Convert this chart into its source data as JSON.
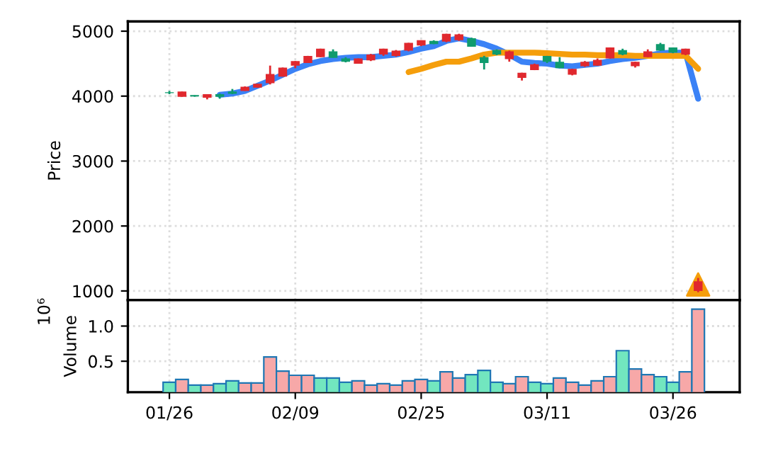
{
  "chart_data": [
    {
      "type": "candlestick",
      "ylabel": "Price",
      "tick_labels": "y",
      "grid": true,
      "categories": [
        null,
        null,
        null,
        null,
        null,
        null,
        null,
        null,
        null,
        null,
        null,
        null,
        null,
        null,
        null,
        null,
        null,
        null,
        null,
        null,
        null,
        null,
        null,
        null,
        null,
        null,
        null,
        null,
        null,
        null,
        null,
        null,
        null,
        null,
        null,
        null,
        null,
        null,
        null,
        null,
        null,
        null,
        null
      ],
      "ohlc": [
        [
          4045,
          4080,
          4030,
          4060
        ],
        [
          4070,
          4070,
          3990,
          3990
        ],
        [
          3995,
          4015,
          3990,
          4015
        ],
        [
          4030,
          4030,
          3950,
          3975
        ],
        [
          3990,
          4040,
          3960,
          4030
        ],
        [
          4035,
          4110,
          4030,
          4070
        ],
        [
          4145,
          4150,
          4080,
          4080
        ],
        [
          4190,
          4190,
          4130,
          4130
        ],
        [
          4340,
          4470,
          4180,
          4200
        ],
        [
          4440,
          4440,
          4300,
          4300
        ],
        [
          4540,
          4540,
          4430,
          4470
        ],
        [
          4620,
          4620,
          4510,
          4510
        ],
        [
          4730,
          4730,
          4600,
          4600
        ],
        [
          4590,
          4720,
          4590,
          4690
        ],
        [
          4530,
          4600,
          4520,
          4580
        ],
        [
          4580,
          4580,
          4500,
          4500
        ],
        [
          4640,
          4650,
          4540,
          4550
        ],
        [
          4730,
          4730,
          4620,
          4640
        ],
        [
          4700,
          4710,
          4610,
          4620
        ],
        [
          4820,
          4820,
          4690,
          4700
        ],
        [
          4860,
          4860,
          4770,
          4780
        ],
        [
          4800,
          4860,
          4800,
          4850
        ],
        [
          4960,
          4960,
          4830,
          4840
        ],
        [
          4950,
          4960,
          4850,
          4860
        ],
        [
          4760,
          4900,
          4760,
          4890
        ],
        [
          4510,
          4620,
          4410,
          4600
        ],
        [
          4640,
          4720,
          4630,
          4710
        ],
        [
          4690,
          4700,
          4530,
          4570
        ],
        [
          4360,
          4360,
          4240,
          4280
        ],
        [
          4490,
          4500,
          4400,
          4400
        ],
        [
          4530,
          4620,
          4510,
          4620
        ],
        [
          4430,
          4600,
          4430,
          4530
        ],
        [
          4420,
          4420,
          4320,
          4330
        ],
        [
          4530,
          4540,
          4450,
          4460
        ],
        [
          4560,
          4580,
          4470,
          4470
        ],
        [
          4750,
          4750,
          4580,
          4580
        ],
        [
          4640,
          4730,
          4630,
          4710
        ],
        [
          4530,
          4530,
          4440,
          4460
        ],
        [
          4690,
          4720,
          4600,
          4600
        ],
        [
          4700,
          4820,
          4700,
          4800
        ],
        [
          4670,
          4750,
          4660,
          4750
        ],
        [
          4730,
          4730,
          4630,
          4640
        ],
        [
          1150,
          1200,
          980,
          1000
        ]
      ],
      "colors": [
        "#0f9b6e",
        "#e0282e",
        "#0f9b6e",
        "#e0282e",
        "#0f9b6e",
        "#0f9b6e",
        "#e0282e",
        "#e0282e",
        "#e0282e",
        "#e0282e",
        "#e0282e",
        "#e0282e",
        "#e0282e",
        "#0f9b6e",
        "#0f9b6e",
        "#e0282e",
        "#e0282e",
        "#e0282e",
        "#e0282e",
        "#e0282e",
        "#e0282e",
        "#0f9b6e",
        "#e0282e",
        "#e0282e",
        "#0f9b6e",
        "#0f9b6e",
        "#0f9b6e",
        "#e0282e",
        "#e0282e",
        "#e0282e",
        "#0f9b6e",
        "#0f9b6e",
        "#e0282e",
        "#e0282e",
        "#e0282e",
        "#e0282e",
        "#0f9b6e",
        "#e0282e",
        "#e0282e",
        "#0f9b6e",
        "#0f9b6e",
        "#e0282e",
        "#e0282e"
      ],
      "series": [
        {
          "type": "line",
          "color": "#3b82f6",
          "values": [
            null,
            null,
            null,
            null,
            4020,
            4040,
            4080,
            4160,
            4240,
            4330,
            4420,
            4490,
            4540,
            4570,
            4590,
            4600,
            4600,
            4620,
            4640,
            4680,
            4730,
            4770,
            4850,
            4890,
            4850,
            4800,
            4730,
            4640,
            4530,
            4510,
            4500,
            4470,
            4460,
            4480,
            4500,
            4540,
            4570,
            4590,
            4620,
            4660,
            4670,
            4670,
            3960
          ]
        },
        {
          "type": "line",
          "color": "#f59e0b",
          "values": [
            null,
            null,
            null,
            null,
            null,
            null,
            null,
            null,
            null,
            null,
            null,
            null,
            null,
            null,
            null,
            null,
            null,
            null,
            null,
            4370,
            4420,
            4480,
            4530,
            4530,
            4580,
            4640,
            4670,
            4670,
            4670,
            4670,
            4660,
            4650,
            4640,
            4640,
            4630,
            4630,
            4630,
            4620,
            4620,
            4620,
            4620,
            4620,
            4420
          ]
        },
        {
          "type": "scatter",
          "marker": "triangle",
          "color": "#f59e0b",
          "values": [
            null,
            null,
            null,
            null,
            null,
            null,
            null,
            null,
            null,
            null,
            null,
            null,
            null,
            null,
            null,
            null,
            null,
            null,
            null,
            null,
            null,
            null,
            null,
            null,
            null,
            null,
            null,
            null,
            null,
            null,
            null,
            null,
            null,
            null,
            null,
            null,
            null,
            null,
            null,
            null,
            null,
            null,
            1100
          ]
        }
      ],
      "ylim": [
        860,
        5150
      ],
      "yticks": [
        1000,
        2000,
        3000,
        4000,
        5000
      ]
    },
    {
      "type": "bar",
      "ylabel": "Volume",
      "grid": true,
      "annotations": [
        "10⁶"
      ],
      "categories": [
        "01/26",
        null,
        null,
        null,
        null,
        null,
        null,
        null,
        null,
        null,
        "02/09",
        null,
        null,
        null,
        null,
        null,
        null,
        null,
        null,
        null,
        "02/25",
        null,
        null,
        null,
        null,
        null,
        null,
        null,
        null,
        null,
        "03/11",
        null,
        null,
        null,
        null,
        null,
        null,
        null,
        null,
        null,
        "03/26",
        null,
        null
      ],
      "values": [
        0.2,
        0.24,
        0.16,
        0.16,
        0.18,
        0.22,
        0.19,
        0.19,
        0.56,
        0.36,
        0.3,
        0.3,
        0.26,
        0.26,
        0.2,
        0.22,
        0.16,
        0.18,
        0.16,
        0.22,
        0.24,
        0.22,
        0.35,
        0.26,
        0.31,
        0.37,
        0.2,
        0.18,
        0.28,
        0.2,
        0.18,
        0.26,
        0.2,
        0.16,
        0.22,
        0.28,
        0.65,
        0.39,
        0.31,
        0.28,
        0.2,
        0.35,
        1.24
      ],
      "colors": [
        "#72e6bf",
        "#f7a8a8",
        "#72e6bf",
        "#f7a8a8",
        "#72e6bf",
        "#72e6bf",
        "#f7a8a8",
        "#f7a8a8",
        "#f7a8a8",
        "#f7a8a8",
        "#f7a8a8",
        "#f7a8a8",
        "#72e6bf",
        "#72e6bf",
        "#72e6bf",
        "#f7a8a8",
        "#f7a8a8",
        "#f7a8a8",
        "#f7a8a8",
        "#f7a8a8",
        "#f7a8a8",
        "#72e6bf",
        "#f7a8a8",
        "#f7a8a8",
        "#72e6bf",
        "#72e6bf",
        "#72e6bf",
        "#f7a8a8",
        "#f7a8a8",
        "#72e6bf",
        "#72e6bf",
        "#f7a8a8",
        "#f7a8a8",
        "#f7a8a8",
        "#f7a8a8",
        "#f7a8a8",
        "#72e6bf",
        "#f7a8a8",
        "#f7a8a8",
        "#72e6bf",
        "#72e6bf",
        "#f7a8a8",
        "#f7a8a8"
      ],
      "ylim": [
        0.06,
        1.37
      ],
      "yticks": [
        {
          "value": 0.5,
          "label": "0.5"
        },
        {
          "value": 1.0,
          "label": "1.0"
        }
      ]
    }
  ]
}
